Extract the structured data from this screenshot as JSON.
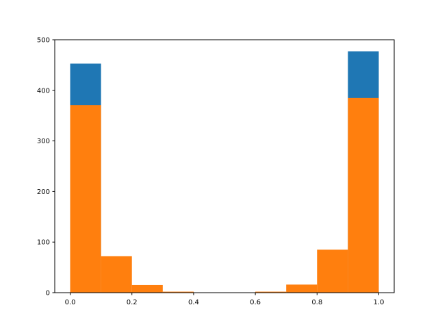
{
  "chart_data": {
    "type": "bar",
    "title": "",
    "xlabel": "",
    "ylabel": "",
    "bin_edges": [
      0.0,
      0.1,
      0.2,
      0.3,
      0.4,
      0.5,
      0.6,
      0.7,
      0.8,
      0.9,
      1.0
    ],
    "series": [
      {
        "color": "#1f77b4",
        "values": [
          453,
          0,
          0,
          0,
          0,
          0,
          0,
          0,
          0,
          477
        ]
      },
      {
        "color": "#ff7f0e",
        "values": [
          371,
          72,
          15,
          2,
          0,
          0,
          2,
          16,
          85,
          385
        ]
      }
    ],
    "xlim": [
      -0.05,
      1.05
    ],
    "ylim": [
      0,
      500
    ],
    "xticks": [
      "0.0",
      "0.2",
      "0.4",
      "0.6",
      "0.8",
      "1.0"
    ],
    "yticks": [
      "0",
      "100",
      "200",
      "300",
      "400",
      "500"
    ],
    "grid": false
  }
}
